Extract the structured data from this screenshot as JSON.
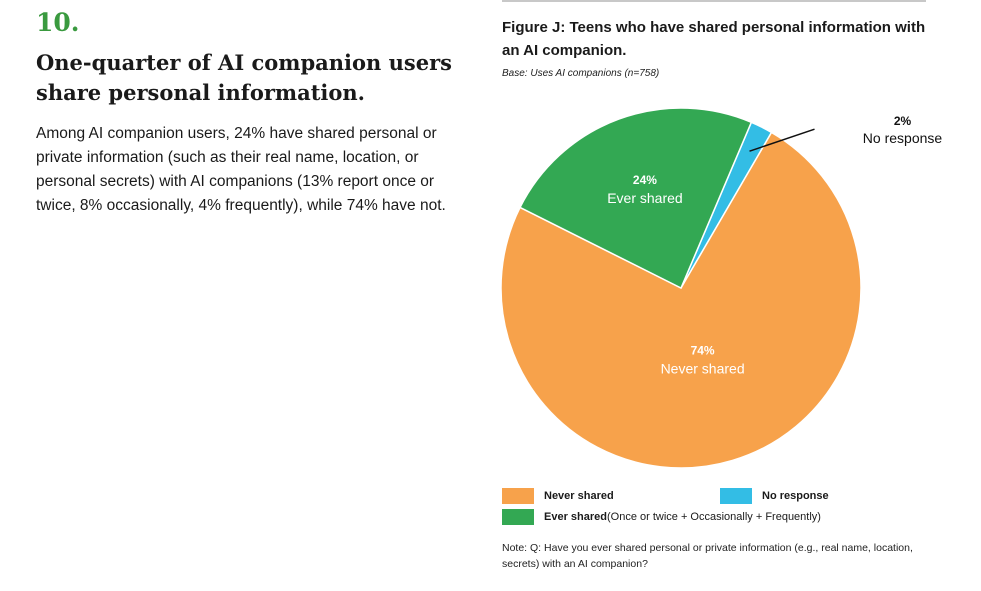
{
  "section": {
    "number": "10.",
    "title": "One-quarter of AI companion users share personal information.",
    "body": "Among AI companion users, 24% have shared personal or private information (such as their real name, location, or personal secrets) with AI companions (13% report once or twice, 8% occasionally, 4% frequently), while 74% have not."
  },
  "figure": {
    "title": "Figure J: Teens who have shared personal information with an AI companion.",
    "base": "Base: Uses AI companions (n=758)",
    "note": "Note: Q: Have you ever shared personal or private information (e.g., real name, location, secrets) with an AI companion?"
  },
  "legend": [
    {
      "key": "never",
      "label": "Never shared",
      "detail": "",
      "color": "#f7a24b"
    },
    {
      "key": "noresp",
      "label": "No response",
      "detail": "",
      "color": "#33bde5"
    },
    {
      "key": "ever",
      "label": "Ever shared",
      "detail": " (Once or twice + Occasionally + Frequently)",
      "color": "#33a853"
    }
  ],
  "chart_data": {
    "type": "pie",
    "title": "Figure J: Teens who have shared personal information with an AI companion.",
    "slices": [
      {
        "name": "No response",
        "value": 2,
        "label_pct": "2%",
        "label_text": "No response",
        "color": "#33bde5"
      },
      {
        "name": "Never shared",
        "value": 74,
        "label_pct": "74%",
        "label_text": "Never shared",
        "color": "#f7a24b"
      },
      {
        "name": "Ever shared",
        "value": 24,
        "label_pct": "24%",
        "label_text": "Ever shared",
        "color": "#33a853"
      }
    ]
  }
}
